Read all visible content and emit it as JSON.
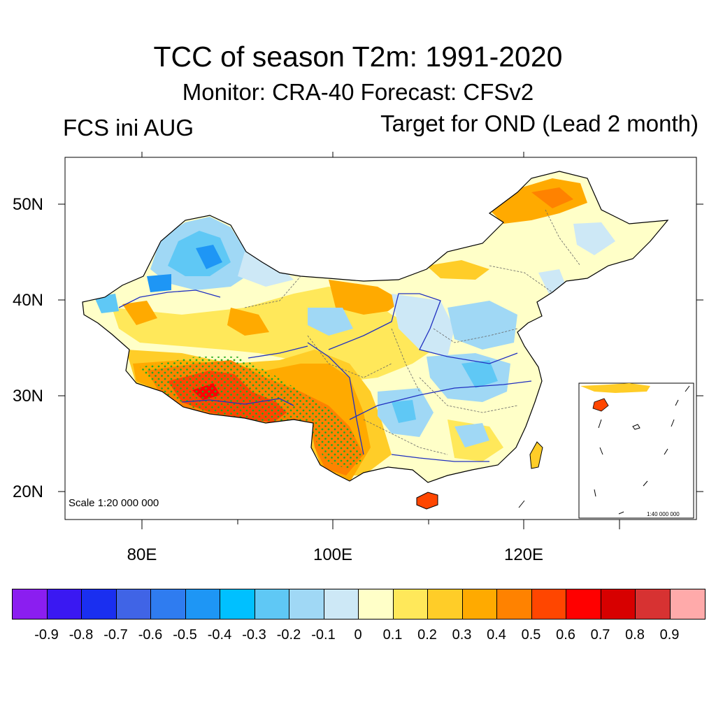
{
  "title": "TCC of season T2m: 1991-2020",
  "subtitle": "Monitor: CRA-40   Forecast: CFSv2",
  "left_subtitle": "FCS ini AUG",
  "right_subtitle": "Target for OND (Lead 2 month)",
  "map": {
    "lat_labels": [
      "50N",
      "40N",
      "30N",
      "20N"
    ],
    "lon_labels": [
      "80E",
      "100E",
      "120E"
    ],
    "scale_main": "Scale 1:20 000 000",
    "scale_inset": "1:40 000 000",
    "stipple_meaning": "significant"
  },
  "colorbar": {
    "colors": [
      "#8b1ef0",
      "#3a18f2",
      "#1a2ff0",
      "#4064e6",
      "#2f7cf0",
      "#1e96f5",
      "#00c0ff",
      "#5fc8f5",
      "#a0d8f5",
      "#cde8f6",
      "#ffffc8",
      "#ffe85a",
      "#ffcd28",
      "#ffaa00",
      "#ff8200",
      "#ff4600",
      "#ff0000",
      "#d70000",
      "#d73232",
      "#ffaaaa"
    ],
    "labels": [
      "-0.9",
      "-0.8",
      "-0.7",
      "-0.6",
      "-0.5",
      "-0.4",
      "-0.3",
      "-0.2",
      "-0.1",
      "0",
      "0.1",
      "0.2",
      "0.3",
      "0.4",
      "0.5",
      "0.6",
      "0.7",
      "0.8",
      "0.9"
    ]
  }
}
